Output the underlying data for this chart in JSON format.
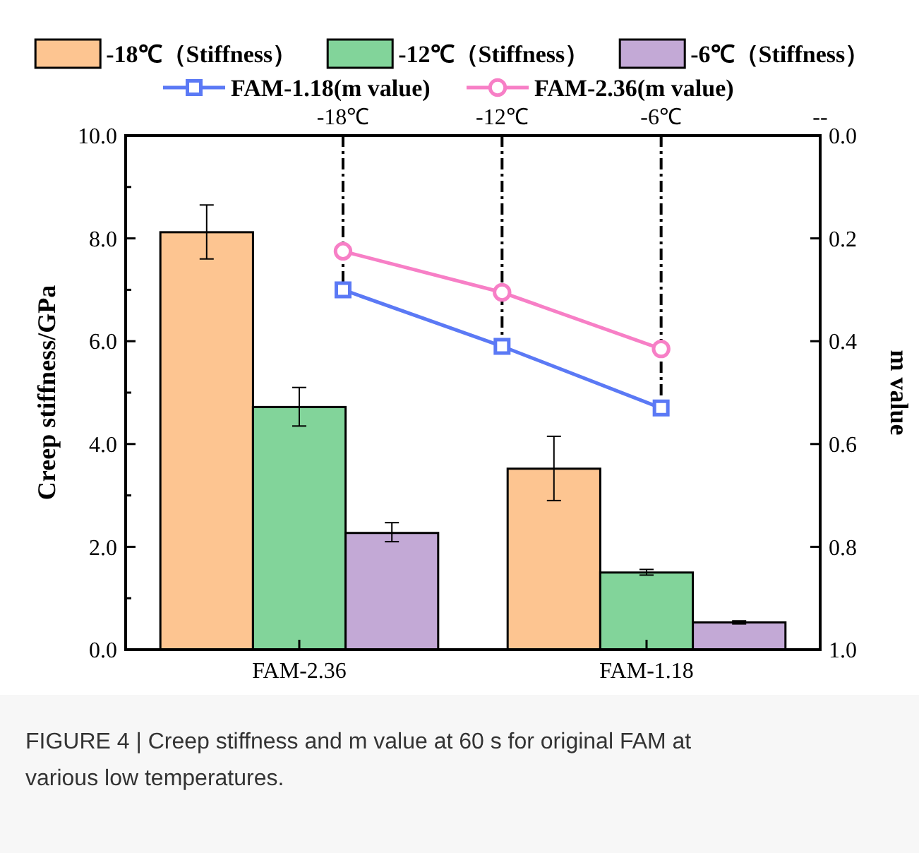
{
  "chart_data": [
    {
      "type": "bar",
      "categories": [
        "FAM-2.36",
        "FAM-1.18"
      ],
      "series": [
        {
          "name": "-18℃（Stiffness）",
          "color": "#fdc591",
          "values": [
            8.12,
            3.52
          ],
          "errors": [
            [
              7.6,
              8.65
            ],
            [
              2.9,
              4.15
            ]
          ]
        },
        {
          "name": "-12℃（Stiffness）",
          "color": "#82d49a",
          "values": [
            4.72,
            1.5
          ],
          "errors": [
            [
              4.35,
              5.1
            ],
            [
              1.45,
              1.56
            ]
          ]
        },
        {
          "name": "-6℃（Stiffness）",
          "color": "#c3a9d6",
          "values": [
            2.27,
            0.53
          ],
          "errors": [
            [
              2.1,
              2.47
            ],
            [
              0.5,
              0.56
            ]
          ]
        }
      ],
      "ylabel": "Creep stiffness/GPa",
      "ylim": [
        0,
        10
      ],
      "yticks": [
        {
          "value": 0,
          "label": "0.0"
        },
        {
          "value": 1,
          "label": null
        },
        {
          "value": 2,
          "label": "2.0"
        },
        {
          "value": 3,
          "label": null
        },
        {
          "value": 4,
          "label": "4.0"
        },
        {
          "value": 5,
          "label": null
        },
        {
          "value": 6,
          "label": "6.0"
        },
        {
          "value": 7,
          "label": null
        },
        {
          "value": 8,
          "label": "8.0"
        },
        {
          "value": 9,
          "label": null
        },
        {
          "value": 10,
          "label": "10.0"
        }
      ],
      "legend": "top",
      "annotations": [
        "FIGURE 4 | Creep stiffness and m value at 60 s for original FAM at various low temperatures."
      ]
    },
    {
      "type": "line",
      "series": [
        {
          "name": "FAM-1.18(m value)",
          "color": "#5b79f5",
          "marker": "square",
          "x": [
            -18,
            -12,
            -6
          ],
          "values": [
            0.3,
            0.41,
            0.53
          ]
        },
        {
          "name": "FAM-2.36(m value)",
          "color": "#f77fc6",
          "marker": "circle",
          "x": [
            -18,
            -12,
            -6
          ],
          "values": [
            0.225,
            0.305,
            0.415
          ]
        }
      ],
      "ylabel": "m value",
      "ylim": [
        1.0,
        0.0
      ],
      "yticks": [
        {
          "value": 0,
          "label": "0.0"
        },
        {
          "value": 0.2,
          "label": "0.2"
        },
        {
          "value": 0.4,
          "label": "0.4"
        },
        {
          "value": 0.6,
          "label": "0.6"
        },
        {
          "value": 0.8,
          "label": "0.8"
        },
        {
          "value": 1,
          "label": "1.0"
        }
      ],
      "xlim": [
        -26.2,
        0
      ],
      "xticks": [
        {
          "value": -18,
          "label": "-18℃"
        },
        {
          "value": -12,
          "label": "-12℃"
        },
        {
          "value": -6,
          "label": "-6℃"
        },
        {
          "value": 0,
          "label": "--"
        }
      ],
      "ref_lines": [
        {
          "axis": "x",
          "value": -18,
          "line_style": "dashdot",
          "color": "#000000"
        },
        {
          "axis": "x",
          "value": -12,
          "line_style": "dashdot",
          "color": "#000000"
        },
        {
          "axis": "x",
          "value": -6,
          "line_style": "dashdot",
          "color": "#000000"
        }
      ],
      "legend": "top"
    }
  ]
}
